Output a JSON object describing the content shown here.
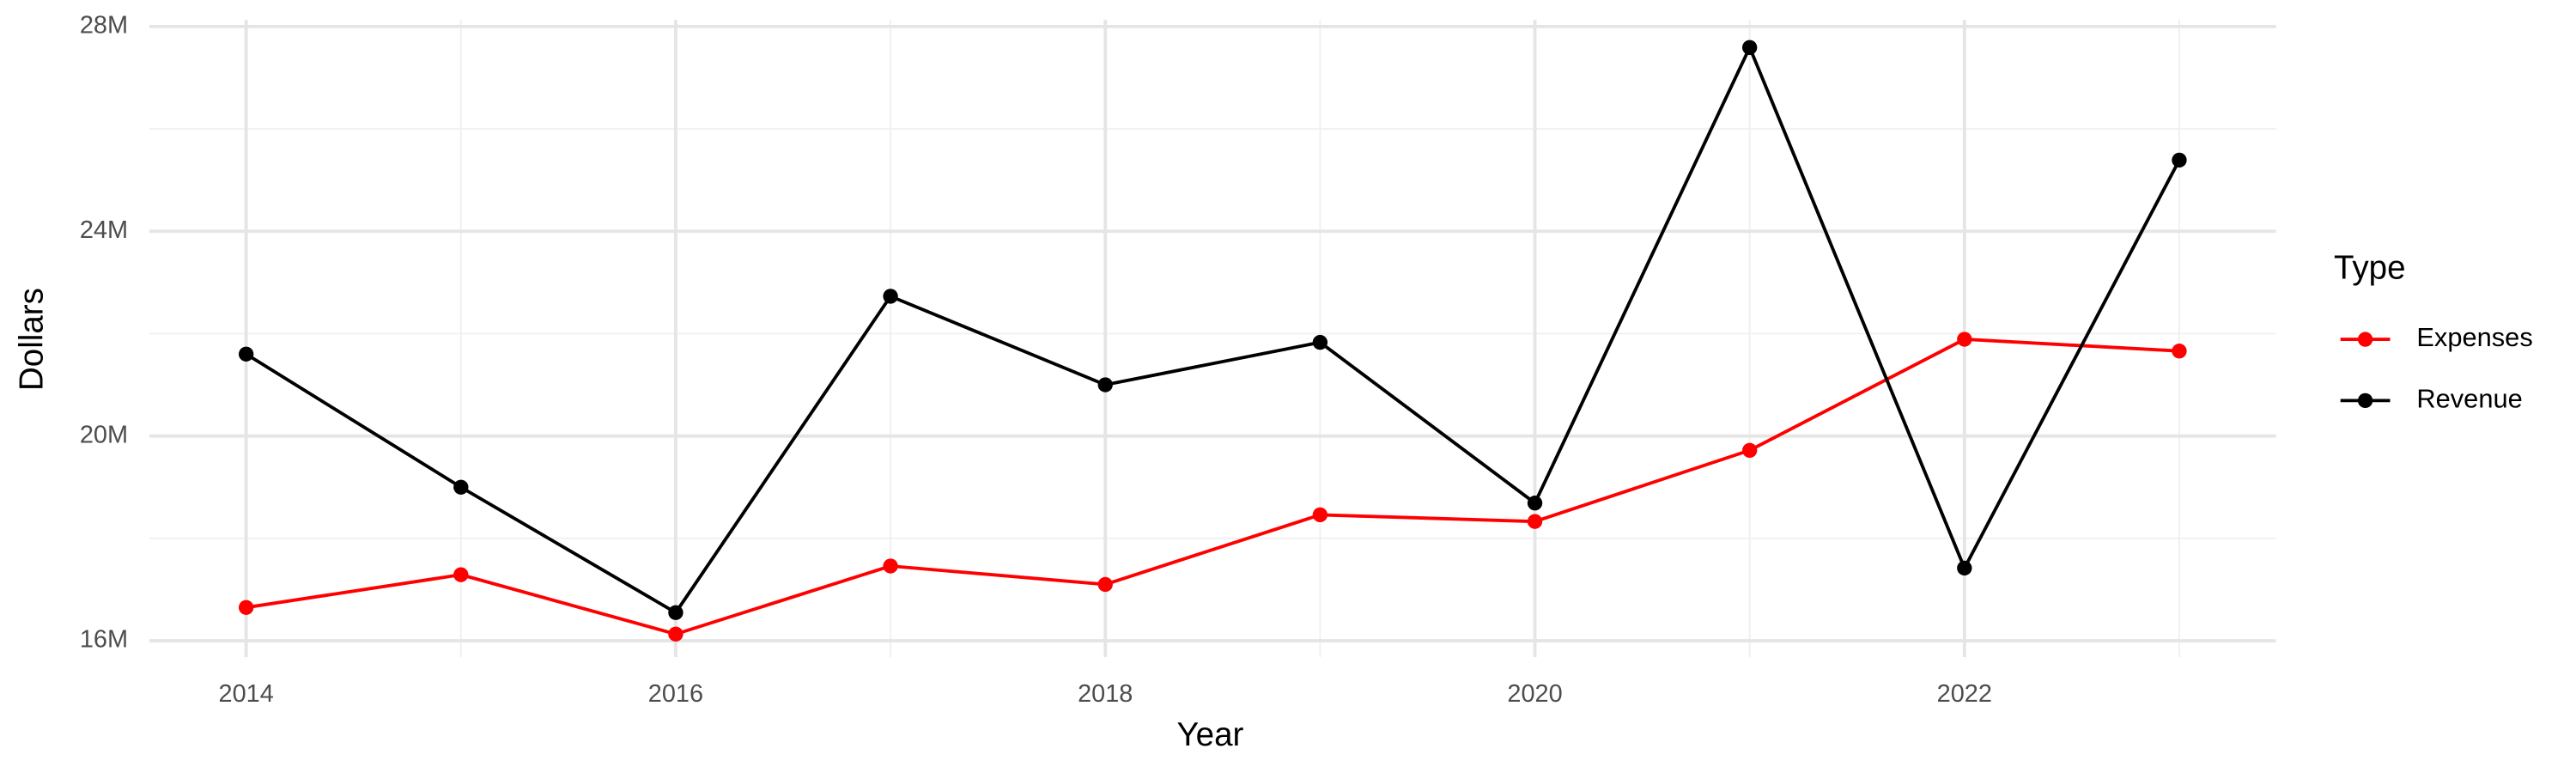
{
  "chart_data": {
    "type": "line",
    "x_label": "Year",
    "y_label": "Dollars",
    "legend_title": "Type",
    "legend": "right",
    "x": [
      2014,
      2015,
      2016,
      2017,
      2018,
      2019,
      2020,
      2021,
      2022,
      2023
    ],
    "series": [
      {
        "name": "Expenses",
        "color": "#ff0000",
        "values": [
          16650000,
          17290000,
          16130000,
          17460000,
          17100000,
          18460000,
          18330000,
          19720000,
          21890000,
          21660000
        ]
      },
      {
        "name": "Revenue",
        "color": "#000000",
        "values": [
          21600000,
          19000000,
          16550000,
          22730000,
          21000000,
          21830000,
          18690000,
          27590000,
          17420000,
          25390000
        ]
      }
    ],
    "xlim": [
      2013.55,
      2023.45
    ],
    "xticks": [
      2014,
      2016,
      2018,
      2020,
      2022
    ],
    "ylim": [
      15680000,
      28130000
    ],
    "yticks": [
      {
        "value": 16000000,
        "label": "16M"
      },
      {
        "value": 20000000,
        "label": "20M"
      },
      {
        "value": 24000000,
        "label": "24M"
      },
      {
        "value": 28000000,
        "label": "28M"
      }
    ],
    "grid": true
  }
}
